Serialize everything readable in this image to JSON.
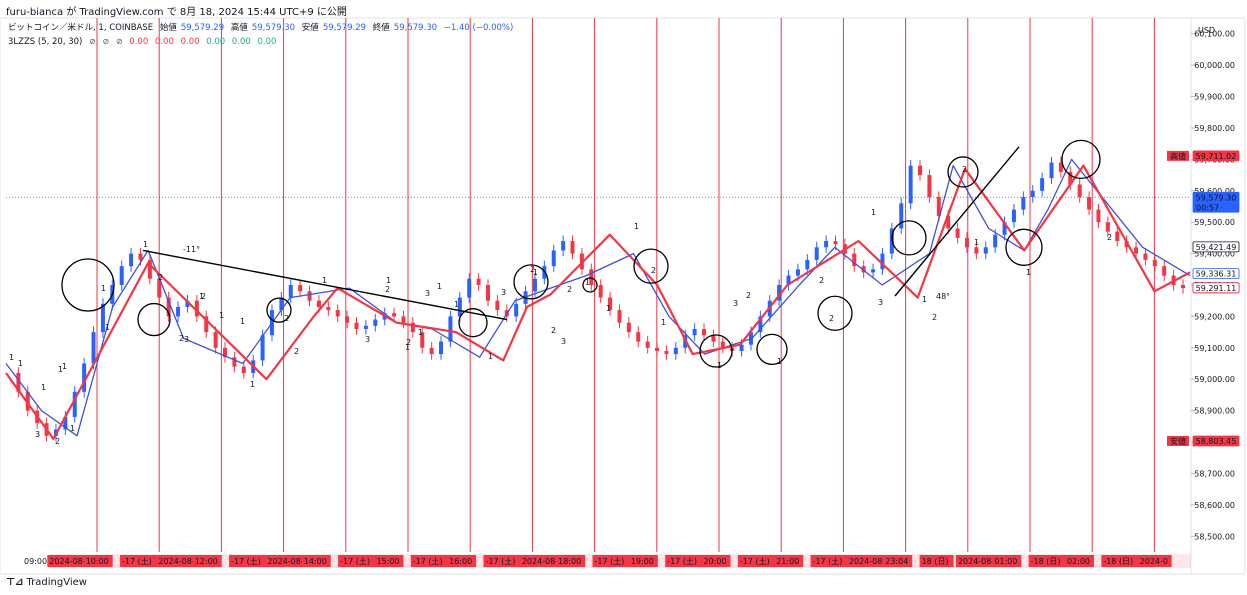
{
  "header": {
    "caption": "furu-bianca が TradingView.com で 8月 18, 2024 15:44 UTC+9 に公開"
  },
  "legend": {
    "symbol": "ビットコイン／米ドル, 1, COINBASE",
    "open_label": "始値",
    "open_value": "59,579.29",
    "high_label": "高値",
    "high_value": "59,579.30",
    "low_label": "安値",
    "low_value": "59,579.29",
    "close_label": "終値",
    "close_value": "59,579.30",
    "change": "−1.40 (−0.00%)",
    "indicator_name": "3LZZS (5, 20, 30)",
    "ind_values": [
      "0.00",
      "0.00",
      "0.00",
      "0.00",
      "0.00",
      "0.00"
    ]
  },
  "colors": {
    "candle_up": "#2962ff",
    "candle_down": "#f23645",
    "zigzag_red": "#f23645",
    "zigzag_blue": "#3f51d8",
    "session_line": "#f23645",
    "label_green": "#22ab94",
    "label_red": "#f23645",
    "price_tag_blue": "#2962ff",
    "price_tag_red": "#f23645"
  },
  "annotations": {
    "angle_1": "-11°",
    "angle_2": "48°"
  },
  "chart_data": {
    "type": "line",
    "currency": "USD",
    "ylim": [
      58450,
      60150
    ],
    "y_ticks": [
      "60,100.00",
      "60,000.00",
      "59,900.00",
      "59,800.00",
      "59,700.00",
      "59,600.00",
      "59,500.00",
      "59,400.00",
      "59,300.00",
      "59,200.00",
      "59,100.00",
      "59,000.00",
      "58,900.00",
      "58,800.00",
      "58,700.00",
      "58,600.00",
      "58,500.00"
    ],
    "x_ticks": [
      "09:00",
      "2024-08-17 (土)",
      "10:00",
      "-17 (土)",
      "2024-08-17 (土)",
      "12:00",
      "-17 (土)",
      "2024-08-17 (土)",
      "14:00",
      "-17 (土)",
      "15:00",
      "-17 (土)",
      "16:00",
      "-17 (土)",
      "2024-08-17 (土)",
      "18:00",
      "-17 (土)",
      "19:00",
      "-17 (土)",
      "20:00",
      "-17 (土)",
      "21:00",
      "-17 (土)",
      "2024-08-17 (土)",
      "23:04",
      "18 (日)",
      "2024-08-18 (日)",
      "01:00",
      "-18 (日)",
      "02:00",
      "-18 (日)",
      "2024-0"
    ],
    "price_tags": [
      {
        "label": "高値",
        "value": "59,711.02",
        "price": 59711.02,
        "style": "red"
      },
      {
        "label": "",
        "value": "59,579.30",
        "sub": "00:57",
        "price": 59579.3,
        "style": "blue"
      },
      {
        "label": "",
        "value": "59,421.49",
        "price": 59421.49,
        "style": "outline"
      },
      {
        "label": "",
        "value": "59,336.31",
        "price": 59336.31,
        "style": "outline-blue"
      },
      {
        "label": "",
        "value": "59,291.11",
        "price": 59291.11,
        "style": "outline-blue"
      },
      {
        "label": "",
        "value": "59,291.11",
        "price": 59291.11,
        "style": "outline-red"
      },
      {
        "label": "安値",
        "value": "58,803.45",
        "price": 58803.45,
        "style": "red"
      }
    ],
    "series": [
      {
        "name": "BTC/USD",
        "values": [
          59020,
          58960,
          58900,
          58860,
          58820,
          58840,
          58880,
          58960,
          59050,
          59150,
          59240,
          59300,
          59360,
          59400,
          59380,
          59320,
          59260,
          59200,
          59230,
          59250,
          59200,
          59150,
          59100,
          59070,
          59040,
          59020,
          59060,
          59140,
          59220,
          59260,
          59300,
          59280,
          59250,
          59230,
          59220,
          59200,
          59180,
          59160,
          59170,
          59190,
          59210,
          59200,
          59180,
          59150,
          59100,
          59080,
          59120,
          59200,
          59260,
          59320,
          59300,
          59250,
          59220,
          59200,
          59240,
          59280,
          59320,
          59360,
          59410,
          59440,
          59400,
          59350,
          59300,
          59260,
          59220,
          59180,
          59150,
          59120,
          59100,
          59090,
          59080,
          59100,
          59140,
          59160,
          59140,
          59120,
          59100,
          59090,
          59110,
          59150,
          59200,
          59250,
          59300,
          59330,
          59350,
          59380,
          59420,
          59440,
          59430,
          59400,
          59360,
          59340,
          59350,
          59400,
          59480,
          59560,
          59680,
          59650,
          59580,
          59520,
          59480,
          59450,
          59420,
          59400,
          59420,
          59460,
          59500,
          59540,
          59580,
          59600,
          59640,
          59690,
          59660,
          59620,
          59580,
          59540,
          59500,
          59470,
          59440,
          59420,
          59400,
          59380,
          59360,
          59330,
          59300,
          59290
        ]
      }
    ],
    "zigzag_red": [
      {
        "x": 0.0,
        "y": 59020
      },
      {
        "x": 0.04,
        "y": 58810
      },
      {
        "x": 0.12,
        "y": 59370
      },
      {
        "x": 0.22,
        "y": 59000
      },
      {
        "x": 0.26,
        "y": 59200
      },
      {
        "x": 0.28,
        "y": 59290
      },
      {
        "x": 0.33,
        "y": 59180
      },
      {
        "x": 0.38,
        "y": 59150
      },
      {
        "x": 0.42,
        "y": 59060
      },
      {
        "x": 0.44,
        "y": 59230
      },
      {
        "x": 0.46,
        "y": 59270
      },
      {
        "x": 0.51,
        "y": 59460
      },
      {
        "x": 0.55,
        "y": 59300
      },
      {
        "x": 0.58,
        "y": 59080
      },
      {
        "x": 0.62,
        "y": 59110
      },
      {
        "x": 0.66,
        "y": 59300
      },
      {
        "x": 0.72,
        "y": 59440
      },
      {
        "x": 0.77,
        "y": 59260
      },
      {
        "x": 0.81,
        "y": 59670
      },
      {
        "x": 0.86,
        "y": 59410
      },
      {
        "x": 0.91,
        "y": 59680
      },
      {
        "x": 0.97,
        "y": 59280
      },
      {
        "x": 1.0,
        "y": 59340
      }
    ],
    "zigzag_blue": [
      {
        "x": 0.0,
        "y": 59050
      },
      {
        "x": 0.03,
        "y": 58900
      },
      {
        "x": 0.06,
        "y": 58820
      },
      {
        "x": 0.09,
        "y": 59230
      },
      {
        "x": 0.12,
        "y": 59410
      },
      {
        "x": 0.15,
        "y": 59130
      },
      {
        "x": 0.2,
        "y": 59050
      },
      {
        "x": 0.24,
        "y": 59260
      },
      {
        "x": 0.29,
        "y": 59290
      },
      {
        "x": 0.33,
        "y": 59180
      },
      {
        "x": 0.36,
        "y": 59160
      },
      {
        "x": 0.4,
        "y": 59070
      },
      {
        "x": 0.43,
        "y": 59250
      },
      {
        "x": 0.46,
        "y": 59290
      },
      {
        "x": 0.49,
        "y": 59330
      },
      {
        "x": 0.53,
        "y": 59400
      },
      {
        "x": 0.56,
        "y": 59200
      },
      {
        "x": 0.59,
        "y": 59080
      },
      {
        "x": 0.63,
        "y": 59130
      },
      {
        "x": 0.67,
        "y": 59300
      },
      {
        "x": 0.7,
        "y": 59420
      },
      {
        "x": 0.74,
        "y": 59300
      },
      {
        "x": 0.78,
        "y": 59400
      },
      {
        "x": 0.8,
        "y": 59680
      },
      {
        "x": 0.83,
        "y": 59480
      },
      {
        "x": 0.86,
        "y": 59410
      },
      {
        "x": 0.88,
        "y": 59540
      },
      {
        "x": 0.9,
        "y": 59700
      },
      {
        "x": 0.93,
        "y": 59560
      },
      {
        "x": 0.96,
        "y": 59420
      },
      {
        "x": 1.0,
        "y": 59330
      }
    ]
  },
  "wave_labels": [
    {
      "t": "1",
      "c": "red"
    },
    {
      "t": "1",
      "c": "red"
    },
    {
      "t": "1",
      "c": "red"
    },
    {
      "t": "1",
      "c": "red"
    },
    {
      "t": "1",
      "c": "red"
    },
    {
      "t": "1",
      "c": "red"
    },
    {
      "t": "1",
      "c": "red"
    },
    {
      "t": "2",
      "c": "red"
    },
    {
      "t": "1",
      "c": "red"
    },
    {
      "t": "2",
      "c": "red"
    },
    {
      "t": "1",
      "c": "red"
    },
    {
      "t": "1",
      "c": "red"
    },
    {
      "t": "2",
      "c": "red"
    },
    {
      "t": "1",
      "c": "red"
    },
    {
      "t": "1",
      "c": "red"
    },
    {
      "t": "2",
      "c": "red"
    },
    {
      "t": "3",
      "c": "red"
    },
    {
      "t": "1",
      "c": "red"
    },
    {
      "t": "1",
      "c": "red"
    },
    {
      "t": "3",
      "c": "red"
    },
    {
      "t": "2",
      "c": "red"
    },
    {
      "t": "1",
      "c": "red"
    },
    {
      "t": "2",
      "c": "red"
    },
    {
      "t": "1",
      "c": "red"
    },
    {
      "t": "1",
      "c": "red"
    },
    {
      "t": "2",
      "c": "red"
    },
    {
      "t": "3",
      "c": "red"
    },
    {
      "t": "2",
      "c": "red"
    },
    {
      "t": "2",
      "c": "red"
    },
    {
      "t": "1",
      "c": "red"
    },
    {
      "t": "2",
      "c": "red"
    },
    {
      "t": "3",
      "c": "green"
    },
    {
      "t": "2",
      "c": "green"
    },
    {
      "t": "1",
      "c": "green"
    },
    {
      "t": "1",
      "c": "green"
    },
    {
      "t": "2",
      "c": "green"
    },
    {
      "t": "3",
      "c": "green"
    },
    {
      "t": "1",
      "c": "green"
    },
    {
      "t": "2",
      "c": "green"
    },
    {
      "t": "3",
      "c": "green"
    },
    {
      "t": "1",
      "c": "green"
    },
    {
      "t": "2",
      "c": "green"
    },
    {
      "t": "1",
      "c": "green"
    },
    {
      "t": "1",
      "c": "green"
    },
    {
      "t": "2",
      "c": "green"
    },
    {
      "t": "3",
      "c": "green"
    },
    {
      "t": "1",
      "c": "green"
    },
    {
      "t": "1",
      "c": "green"
    },
    {
      "t": "1",
      "c": "green"
    },
    {
      "t": "1",
      "c": "green"
    },
    {
      "t": "2",
      "c": "green"
    },
    {
      "t": "3",
      "c": "green"
    },
    {
      "t": "1",
      "c": "green"
    },
    {
      "t": "2",
      "c": "green"
    },
    {
      "t": "1",
      "c": "green"
    },
    {
      "t": "1",
      "c": "green"
    },
    {
      "t": "2",
      "c": "green"
    }
  ],
  "footer": {
    "brand": "TradingView"
  }
}
